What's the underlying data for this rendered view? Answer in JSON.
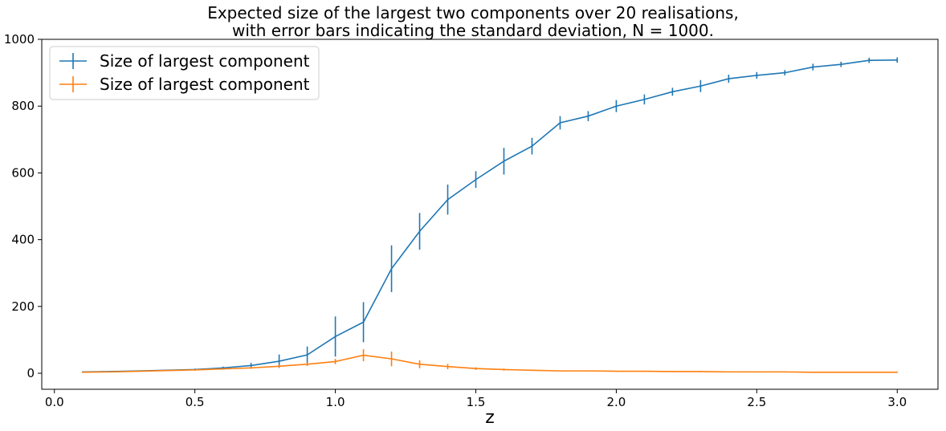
{
  "chart_data": {
    "type": "line",
    "title": [
      "Expected size of the largest two components over 20 realisations,",
      "with error bars indicating the standard deviation, N = 1000."
    ],
    "xlabel": "z",
    "ylabel": "",
    "xlim": [
      -0.045,
      3.145
    ],
    "ylim": [
      -48,
      1000
    ],
    "xticks": [
      0.0,
      0.5,
      1.0,
      1.5,
      2.0,
      2.5,
      3.0
    ],
    "xtick_labels": [
      "0.0",
      "0.5",
      "1.0",
      "1.5",
      "2.0",
      "2.5",
      "3.0"
    ],
    "yticks": [
      0,
      200,
      400,
      600,
      800,
      1000
    ],
    "ytick_labels": [
      "0",
      "200",
      "400",
      "600",
      "800",
      "1000"
    ],
    "grid": false,
    "legend_position": "top-left",
    "x": [
      0.1,
      0.2,
      0.3,
      0.4,
      0.5,
      0.6,
      0.7,
      0.8,
      0.9,
      1.0,
      1.1,
      1.2,
      1.3,
      1.4,
      1.5,
      1.6,
      1.7,
      1.8,
      1.9,
      2.0,
      2.1,
      2.2,
      2.3,
      2.4,
      2.5,
      2.6,
      2.7,
      2.8,
      2.9,
      3.0
    ],
    "series": [
      {
        "name": "Size of largest component",
        "color": "#1f77b4",
        "values": [
          4,
          5,
          7,
          9,
          11,
          16,
          23,
          36,
          55,
          110,
          153,
          313,
          425,
          520,
          580,
          635,
          680,
          750,
          770,
          800,
          820,
          843,
          860,
          882,
          892,
          900,
          917,
          925,
          937,
          938
        ],
        "errors": [
          1,
          1,
          1,
          2,
          3,
          4,
          8,
          20,
          25,
          60,
          60,
          70,
          55,
          45,
          25,
          40,
          25,
          20,
          15,
          18,
          15,
          12,
          18,
          12,
          10,
          8,
          10,
          8,
          8,
          8
        ]
      },
      {
        "name": "Size of largest component",
        "color": "#ff7f0e",
        "values": [
          3,
          4,
          6,
          8,
          10,
          13,
          16,
          21,
          27,
          35,
          54,
          43,
          27,
          20,
          14,
          11,
          9,
          7,
          7,
          6,
          6,
          5,
          5,
          4,
          4,
          4,
          3,
          3,
          3,
          3
        ],
        "errors": [
          1,
          1,
          1,
          1,
          2,
          2,
          3,
          4,
          5,
          8,
          18,
          22,
          12,
          8,
          4,
          3,
          2,
          1,
          1,
          1,
          1,
          1,
          1,
          1,
          1,
          1,
          1,
          1,
          1,
          1
        ]
      }
    ]
  }
}
